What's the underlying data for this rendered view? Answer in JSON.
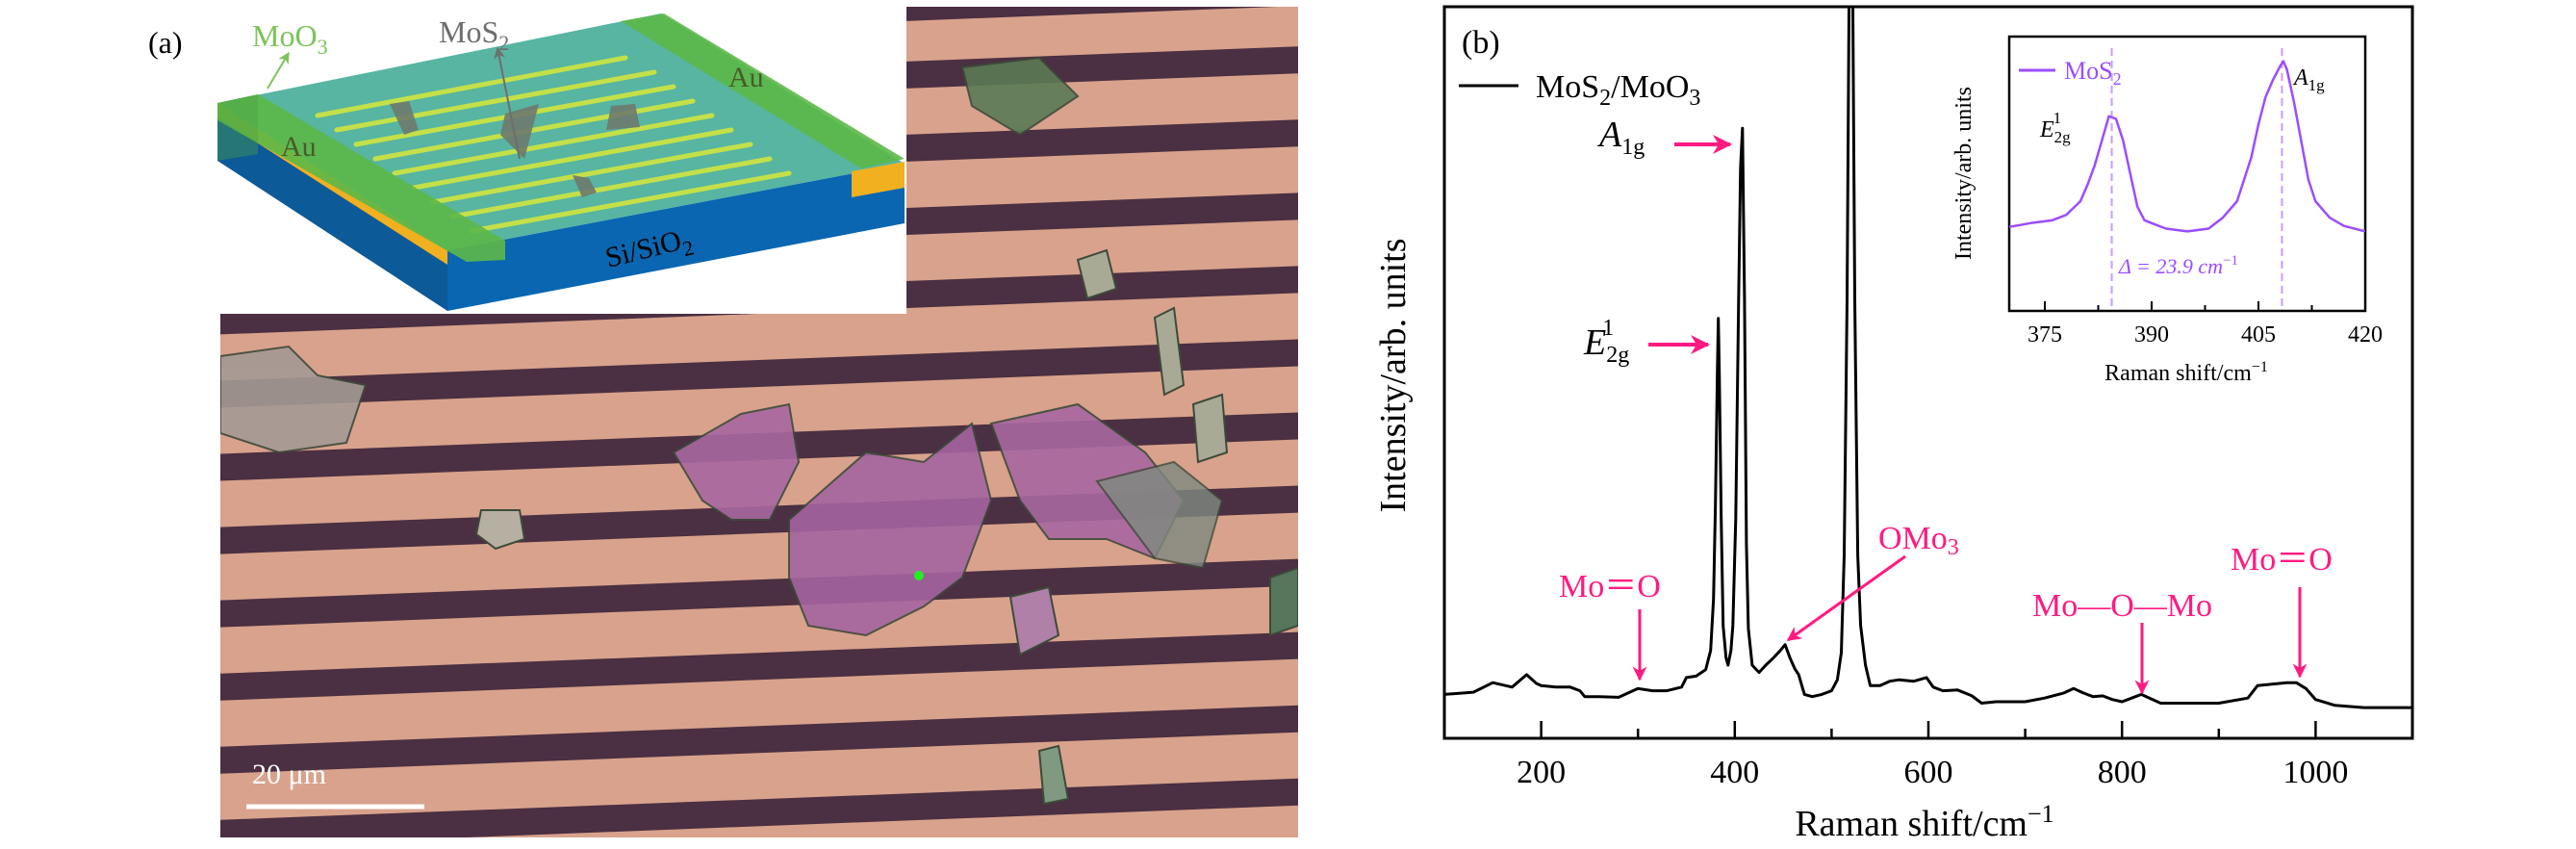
{
  "panel_a": {
    "label": "(a)",
    "schematic": {
      "moo3": {
        "main": "MoO",
        "sub": "3"
      },
      "mos2": {
        "main": "MoS",
        "sub": "2"
      },
      "au_left": "Au",
      "au_right": "Au",
      "substrate": {
        "main": "Si/SiO",
        "sub": "2"
      }
    },
    "micrograph": {
      "scale_bar": "20 μm"
    },
    "colors": {
      "moo3": "#7cc35a",
      "mos2": "#6e6e6e",
      "substrate": "#0b5fa3",
      "au": "#f0b020",
      "film": "#3aa890"
    }
  },
  "chart_data": [
    {
      "type": "line",
      "panel_label": "(b)",
      "xlabel": {
        "main": "Raman shift/cm",
        "sup": "−1"
      },
      "ylabel": "Intensity/arb. units",
      "xlim": [
        100,
        1100
      ],
      "ylim": [
        0,
        1
      ],
      "xticks": [
        200,
        400,
        600,
        800,
        1000
      ],
      "xticks_minor_step": 100,
      "y_tick_labels": false,
      "grid": false,
      "legend": {
        "position": "top-left",
        "label": {
          "main": "MoS",
          "sub1": "2",
          "mid": "/MoO",
          "sub2": "3"
        }
      },
      "series": [
        {
          "color": "#000000",
          "x": [
            100,
            130,
            150,
            170,
            185,
            195,
            200,
            215,
            230,
            240,
            245,
            260,
            280,
            300,
            315,
            330,
            345,
            350,
            360,
            370,
            375,
            378,
            380,
            382,
            383,
            384,
            386,
            388,
            391,
            393,
            396,
            398,
            401,
            404,
            406,
            408,
            410,
            412,
            414,
            418,
            425,
            432,
            440,
            447,
            452,
            457,
            462,
            466,
            472,
            480,
            490,
            500,
            506,
            510,
            513,
            516,
            518,
            520,
            522,
            524,
            527,
            530,
            535,
            540,
            550,
            560,
            570,
            585,
            598,
            605,
            615,
            630,
            645,
            655,
            670,
            700,
            720,
            740,
            750,
            760,
            770,
            780,
            790,
            800,
            810,
            820,
            830,
            840,
            860,
            900,
            930,
            940,
            955,
            970,
            980,
            990,
            1000,
            1020,
            1050,
            1080,
            1100
          ],
          "y": [
            0.06,
            0.063,
            0.076,
            0.07,
            0.087,
            0.075,
            0.072,
            0.07,
            0.07,
            0.065,
            0.057,
            0.057,
            0.056,
            0.068,
            0.065,
            0.065,
            0.07,
            0.083,
            0.085,
            0.094,
            0.12,
            0.19,
            0.32,
            0.5,
            0.574,
            0.5,
            0.3,
            0.154,
            0.11,
            0.1,
            0.12,
            0.154,
            0.3,
            0.6,
            0.78,
            0.834,
            0.6,
            0.265,
            0.15,
            0.1,
            0.09,
            0.1,
            0.11,
            0.12,
            0.128,
            0.11,
            0.095,
            0.087,
            0.06,
            0.057,
            0.06,
            0.065,
            0.08,
            0.117,
            0.25,
            0.6,
            1.0,
            1.05,
            1.0,
            0.6,
            0.25,
            0.154,
            0.1,
            0.072,
            0.072,
            0.078,
            0.08,
            0.078,
            0.083,
            0.07,
            0.065,
            0.066,
            0.058,
            0.048,
            0.05,
            0.05,
            0.055,
            0.062,
            0.068,
            0.062,
            0.057,
            0.058,
            0.053,
            0.05,
            0.055,
            0.06,
            0.054,
            0.048,
            0.048,
            0.048,
            0.055,
            0.072,
            0.074,
            0.076,
            0.076,
            0.068,
            0.053,
            0.045,
            0.042,
            0.042,
            0.042
          ]
        }
      ],
      "annotations": [
        {
          "text": {
            "main": "A",
            "sub": "1g"
          },
          "x": 408,
          "color": "#000000",
          "arrow_color": "#ff1a80"
        },
        {
          "text": {
            "main": "E",
            "sub": "2g",
            "sup": "1"
          },
          "x": 383,
          "color": "#000000",
          "arrow_color": "#ff1a80"
        },
        {
          "text": "Mo＝O",
          "x": 300,
          "color": "#ff1a80"
        },
        {
          "text": {
            "main": "OMo",
            "sub": "3"
          },
          "x": 452,
          "color": "#ff1a80"
        },
        {
          "text": "Mo—O—Mo",
          "x": 820,
          "color": "#ff1a80"
        },
        {
          "text": "Mo＝O",
          "x": 980,
          "color": "#ff1a80"
        }
      ]
    },
    {
      "type": "line",
      "inset": true,
      "xlabel": {
        "main": "Raman shift/cm",
        "sup": "−1"
      },
      "ylabel": "Intensity/arb. units",
      "xlim": [
        370,
        420
      ],
      "ylim": [
        0,
        1
      ],
      "xticks": [
        375,
        390,
        405,
        420
      ],
      "legend": {
        "position": "top-left",
        "label": {
          "main": "MoS",
          "sub": "2"
        }
      },
      "series": [
        {
          "color": "#9b4dff",
          "x": [
            370,
            373,
            376,
            378,
            380,
            381,
            382,
            383,
            384,
            385,
            386,
            387,
            388,
            389,
            390,
            392,
            395,
            398,
            400,
            402,
            403,
            404,
            405,
            406,
            407,
            408,
            408.5,
            409,
            410,
            411,
            412,
            413,
            415,
            417,
            420
          ],
          "y": [
            0.306,
            0.32,
            0.33,
            0.35,
            0.4,
            0.46,
            0.53,
            0.62,
            0.71,
            0.7,
            0.62,
            0.5,
            0.38,
            0.33,
            0.32,
            0.3,
            0.29,
            0.3,
            0.34,
            0.4,
            0.48,
            0.56,
            0.68,
            0.78,
            0.84,
            0.89,
            0.91,
            0.88,
            0.76,
            0.62,
            0.48,
            0.4,
            0.34,
            0.31,
            0.29
          ]
        }
      ],
      "peak_lines": [
        384.4,
        408.3
      ],
      "annotations": [
        {
          "text": {
            "main": "E",
            "sub": "2g",
            "sup": "1"
          },
          "x": 384.4
        },
        {
          "text": {
            "main": "A",
            "sub": "1g"
          },
          "x": 408.3
        },
        {
          "text": {
            "main": "Δ = 23.9 cm",
            "sup": "−1"
          }
        }
      ]
    }
  ]
}
